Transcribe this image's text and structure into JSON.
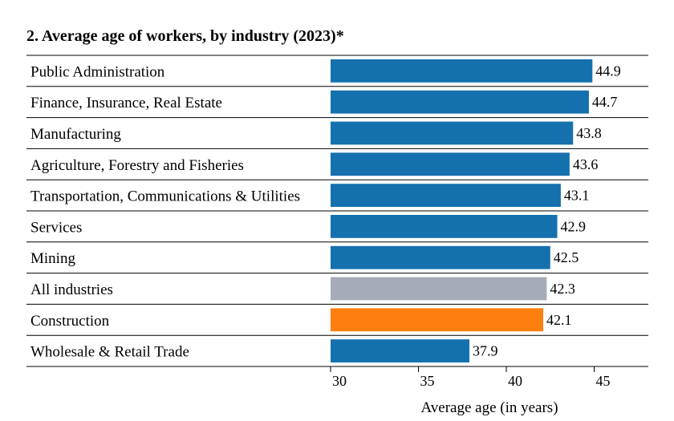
{
  "chart_data": {
    "type": "bar",
    "orientation": "horizontal",
    "title": "2. Average age of workers, by industry (2023)*",
    "xlabel": "Average age (in years)",
    "ylabel": "",
    "xlim": [
      30,
      48
    ],
    "xticks": [
      30,
      35,
      40,
      45
    ],
    "grid": false,
    "categories": [
      "Public Administration",
      "Finance, Insurance, Real Estate",
      "Manufacturing",
      "Agriculture, Forestry and Fisheries",
      "Transportation, Communications & Utilities",
      "Services",
      "Mining",
      "All industries",
      "Construction",
      "Wholesale & Retail Trade"
    ],
    "values": [
      44.9,
      44.7,
      43.8,
      43.6,
      43.1,
      42.9,
      42.5,
      42.3,
      42.1,
      37.9
    ],
    "value_labels": [
      "44.9",
      "44.7",
      "43.8",
      "43.6",
      "43.1",
      "42.9",
      "42.5",
      "42.3",
      "42.1",
      "37.9"
    ],
    "colors": [
      "#1570ae",
      "#1570ae",
      "#1570ae",
      "#1570ae",
      "#1570ae",
      "#1570ae",
      "#1570ae",
      "#a5acb8",
      "#fd7f10",
      "#1570ae"
    ]
  }
}
